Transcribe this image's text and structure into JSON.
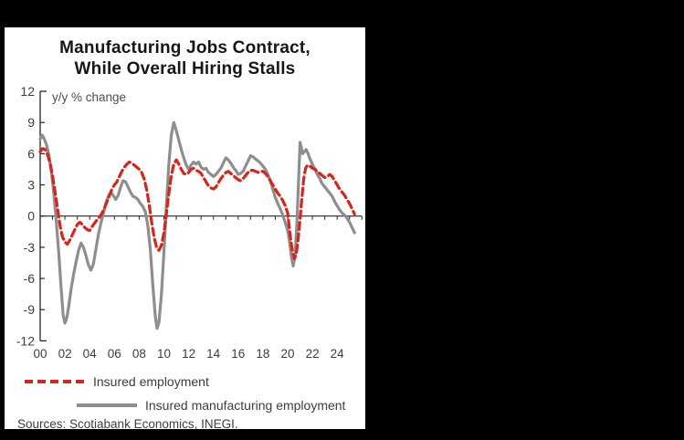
{
  "window": {
    "background": "#000000",
    "card_background": "#ffffff"
  },
  "title": {
    "line1": "Manufacturing Jobs Contract,",
    "line2": "While Overall Hiring Stalls"
  },
  "sources": "Sources: Scotiabank Economics, INEGI.",
  "legend": {
    "items": [
      {
        "label": "Insured employment",
        "style": "dashed",
        "color": "#d8251c"
      },
      {
        "label": "Insured manufacturing employment",
        "style": "solid",
        "color": "#8e8e8e"
      }
    ]
  },
  "chart_data": {
    "type": "line",
    "title": "Manufacturing Jobs Contract, While Overall Hiring Stalls",
    "ylabel": "y/y % change",
    "ylim": [
      -12,
      12
    ],
    "yticks": [
      12,
      9,
      6,
      3,
      0,
      -3,
      -6,
      -9,
      -12
    ],
    "x_start": 2000,
    "x_end": 2026,
    "xtick_years": [
      2000,
      2002,
      2004,
      2006,
      2008,
      2010,
      2012,
      2014,
      2016,
      2018,
      2020,
      2022,
      2024
    ],
    "xtick_labels": [
      "00",
      "02",
      "04",
      "06",
      "08",
      "10",
      "12",
      "14",
      "16",
      "18",
      "20",
      "22",
      "24"
    ],
    "grid": false,
    "legend_position": "bottom-left",
    "axis_color": "#262626",
    "tick_label_color": "#3d3d3d",
    "series": [
      {
        "name": "Insured employment",
        "color": "#d8251c",
        "style": "dashed",
        "points": [
          [
            2000.0,
            6.2
          ],
          [
            2000.2,
            6.5
          ],
          [
            2000.4,
            6.4
          ],
          [
            2000.6,
            5.9
          ],
          [
            2000.8,
            5.1
          ],
          [
            2001.0,
            3.9
          ],
          [
            2001.2,
            2.3
          ],
          [
            2001.4,
            0.7
          ],
          [
            2001.6,
            -0.9
          ],
          [
            2001.8,
            -2.0
          ],
          [
            2002.0,
            -2.5
          ],
          [
            2002.2,
            -2.7
          ],
          [
            2002.4,
            -2.3
          ],
          [
            2002.6,
            -1.8
          ],
          [
            2002.8,
            -1.3
          ],
          [
            2003.0,
            -0.8
          ],
          [
            2003.2,
            -0.6
          ],
          [
            2003.4,
            -0.8
          ],
          [
            2003.6,
            -1.1
          ],
          [
            2003.8,
            -1.3
          ],
          [
            2004.0,
            -1.4
          ],
          [
            2004.2,
            -1.0
          ],
          [
            2004.5,
            -0.5
          ],
          [
            2004.8,
            -0.1
          ],
          [
            2005.0,
            0.3
          ],
          [
            2005.2,
            0.8
          ],
          [
            2005.4,
            1.4
          ],
          [
            2005.6,
            2.0
          ],
          [
            2005.8,
            2.6
          ],
          [
            2006.0,
            3.0
          ],
          [
            2006.2,
            3.3
          ],
          [
            2006.4,
            3.8
          ],
          [
            2006.6,
            4.3
          ],
          [
            2006.8,
            4.7
          ],
          [
            2007.0,
            5.0
          ],
          [
            2007.2,
            5.2
          ],
          [
            2007.4,
            5.1
          ],
          [
            2007.6,
            4.9
          ],
          [
            2007.8,
            4.7
          ],
          [
            2008.0,
            4.5
          ],
          [
            2008.2,
            4.2
          ],
          [
            2008.4,
            3.6
          ],
          [
            2008.6,
            2.6
          ],
          [
            2008.8,
            1.2
          ],
          [
            2009.0,
            -0.5
          ],
          [
            2009.2,
            -2.0
          ],
          [
            2009.4,
            -3.0
          ],
          [
            2009.6,
            -3.3
          ],
          [
            2009.8,
            -2.8
          ],
          [
            2010.0,
            -1.6
          ],
          [
            2010.2,
            0.2
          ],
          [
            2010.4,
            2.2
          ],
          [
            2010.6,
            3.9
          ],
          [
            2010.8,
            5.0
          ],
          [
            2011.0,
            5.4
          ],
          [
            2011.2,
            5.0
          ],
          [
            2011.4,
            4.5
          ],
          [
            2011.6,
            4.1
          ],
          [
            2011.8,
            4.0
          ],
          [
            2012.0,
            4.2
          ],
          [
            2012.2,
            4.5
          ],
          [
            2012.4,
            4.6
          ],
          [
            2012.6,
            4.4
          ],
          [
            2012.8,
            4.3
          ],
          [
            2013.0,
            4.1
          ],
          [
            2013.2,
            3.7
          ],
          [
            2013.4,
            3.3
          ],
          [
            2013.6,
            2.9
          ],
          [
            2013.8,
            2.7
          ],
          [
            2014.0,
            2.6
          ],
          [
            2014.2,
            2.8
          ],
          [
            2014.4,
            3.2
          ],
          [
            2014.6,
            3.6
          ],
          [
            2014.8,
            3.9
          ],
          [
            2015.0,
            4.2
          ],
          [
            2015.2,
            4.3
          ],
          [
            2015.4,
            4.1
          ],
          [
            2015.6,
            3.9
          ],
          [
            2015.8,
            3.7
          ],
          [
            2016.0,
            3.5
          ],
          [
            2016.2,
            3.4
          ],
          [
            2016.4,
            3.6
          ],
          [
            2016.6,
            3.9
          ],
          [
            2016.8,
            4.2
          ],
          [
            2017.0,
            4.4
          ],
          [
            2017.2,
            4.4
          ],
          [
            2017.4,
            4.3
          ],
          [
            2017.6,
            4.2
          ],
          [
            2017.8,
            4.3
          ],
          [
            2018.0,
            4.3
          ],
          [
            2018.2,
            4.1
          ],
          [
            2018.4,
            3.8
          ],
          [
            2018.6,
            3.4
          ],
          [
            2018.8,
            3.0
          ],
          [
            2019.0,
            2.6
          ],
          [
            2019.2,
            2.2
          ],
          [
            2019.4,
            1.9
          ],
          [
            2019.6,
            1.5
          ],
          [
            2019.8,
            1.0
          ],
          [
            2020.0,
            0.3
          ],
          [
            2020.1,
            -0.8
          ],
          [
            2020.25,
            -2.3
          ],
          [
            2020.4,
            -3.5
          ],
          [
            2020.55,
            -4.1
          ],
          [
            2020.7,
            -3.6
          ],
          [
            2020.85,
            -2.2
          ],
          [
            2021.0,
            -0.3
          ],
          [
            2021.15,
            1.8
          ],
          [
            2021.3,
            3.6
          ],
          [
            2021.45,
            4.6
          ],
          [
            2021.6,
            4.9
          ],
          [
            2021.8,
            4.8
          ],
          [
            2022.0,
            4.6
          ],
          [
            2022.2,
            4.5
          ],
          [
            2022.4,
            4.3
          ],
          [
            2022.6,
            4.1
          ],
          [
            2022.8,
            3.9
          ],
          [
            2023.0,
            3.7
          ],
          [
            2023.2,
            3.8
          ],
          [
            2023.4,
            4.0
          ],
          [
            2023.6,
            3.8
          ],
          [
            2023.8,
            3.4
          ],
          [
            2024.0,
            3.0
          ],
          [
            2024.2,
            2.6
          ],
          [
            2024.4,
            2.3
          ],
          [
            2024.6,
            2.0
          ],
          [
            2024.8,
            1.6
          ],
          [
            2025.0,
            1.2
          ],
          [
            2025.2,
            0.7
          ],
          [
            2025.4,
            0.2
          ]
        ]
      },
      {
        "name": "Insured manufacturing employment",
        "color": "#8e8e8e",
        "style": "solid",
        "points": [
          [
            2000.0,
            7.4
          ],
          [
            2000.15,
            7.8
          ],
          [
            2000.3,
            7.5
          ],
          [
            2000.5,
            6.9
          ],
          [
            2000.7,
            5.9
          ],
          [
            2000.9,
            4.3
          ],
          [
            2001.1,
            2.2
          ],
          [
            2001.3,
            -0.5
          ],
          [
            2001.5,
            -3.5
          ],
          [
            2001.7,
            -7.0
          ],
          [
            2001.85,
            -9.5
          ],
          [
            2002.0,
            -10.3
          ],
          [
            2002.15,
            -9.8
          ],
          [
            2002.3,
            -8.7
          ],
          [
            2002.5,
            -7.0
          ],
          [
            2002.7,
            -5.6
          ],
          [
            2002.9,
            -4.4
          ],
          [
            2003.1,
            -3.3
          ],
          [
            2003.3,
            -2.6
          ],
          [
            2003.5,
            -3.0
          ],
          [
            2003.7,
            -3.8
          ],
          [
            2003.9,
            -4.7
          ],
          [
            2004.1,
            -5.2
          ],
          [
            2004.3,
            -4.6
          ],
          [
            2004.5,
            -3.2
          ],
          [
            2004.7,
            -1.8
          ],
          [
            2004.9,
            -0.7
          ],
          [
            2005.1,
            0.2
          ],
          [
            2005.3,
            1.2
          ],
          [
            2005.5,
            1.9
          ],
          [
            2005.7,
            2.3
          ],
          [
            2005.9,
            2.0
          ],
          [
            2006.1,
            1.6
          ],
          [
            2006.3,
            2.0
          ],
          [
            2006.5,
            2.8
          ],
          [
            2006.7,
            3.4
          ],
          [
            2006.9,
            3.3
          ],
          [
            2007.1,
            2.8
          ],
          [
            2007.3,
            2.3
          ],
          [
            2007.5,
            1.9
          ],
          [
            2007.7,
            1.8
          ],
          [
            2007.9,
            1.6
          ],
          [
            2008.1,
            1.2
          ],
          [
            2008.3,
            0.9
          ],
          [
            2008.5,
            0.4
          ],
          [
            2008.7,
            -0.9
          ],
          [
            2008.9,
            -3.2
          ],
          [
            2009.1,
            -6.6
          ],
          [
            2009.3,
            -9.6
          ],
          [
            2009.45,
            -10.8
          ],
          [
            2009.6,
            -10.2
          ],
          [
            2009.8,
            -7.5
          ],
          [
            2010.0,
            -3.5
          ],
          [
            2010.2,
            1.0
          ],
          [
            2010.4,
            5.0
          ],
          [
            2010.6,
            7.8
          ],
          [
            2010.8,
            9.0
          ],
          [
            2011.0,
            8.2
          ],
          [
            2011.2,
            7.3
          ],
          [
            2011.4,
            6.4
          ],
          [
            2011.6,
            5.6
          ],
          [
            2011.8,
            4.9
          ],
          [
            2012.0,
            4.5
          ],
          [
            2012.2,
            4.9
          ],
          [
            2012.4,
            5.2
          ],
          [
            2012.6,
            5.0
          ],
          [
            2012.8,
            5.2
          ],
          [
            2013.0,
            4.7
          ],
          [
            2013.2,
            4.5
          ],
          [
            2013.4,
            4.6
          ],
          [
            2013.6,
            4.2
          ],
          [
            2013.8,
            4.0
          ],
          [
            2014.0,
            3.8
          ],
          [
            2014.2,
            4.0
          ],
          [
            2014.4,
            4.3
          ],
          [
            2014.6,
            4.6
          ],
          [
            2014.8,
            5.1
          ],
          [
            2015.0,
            5.6
          ],
          [
            2015.2,
            5.4
          ],
          [
            2015.4,
            5.1
          ],
          [
            2015.6,
            4.7
          ],
          [
            2015.8,
            4.4
          ],
          [
            2016.0,
            4.0
          ],
          [
            2016.2,
            4.1
          ],
          [
            2016.4,
            4.3
          ],
          [
            2016.6,
            4.8
          ],
          [
            2016.8,
            5.3
          ],
          [
            2017.0,
            5.8
          ],
          [
            2017.2,
            5.7
          ],
          [
            2017.4,
            5.5
          ],
          [
            2017.6,
            5.3
          ],
          [
            2017.8,
            5.1
          ],
          [
            2018.0,
            4.8
          ],
          [
            2018.2,
            4.5
          ],
          [
            2018.4,
            4.0
          ],
          [
            2018.6,
            3.4
          ],
          [
            2018.8,
            2.6
          ],
          [
            2019.0,
            1.8
          ],
          [
            2019.2,
            1.2
          ],
          [
            2019.4,
            0.7
          ],
          [
            2019.6,
            0.1
          ],
          [
            2019.8,
            -0.6
          ],
          [
            2020.0,
            -1.4
          ],
          [
            2020.15,
            -2.4
          ],
          [
            2020.3,
            -3.9
          ],
          [
            2020.45,
            -4.8
          ],
          [
            2020.6,
            -3.8
          ],
          [
            2020.75,
            -0.5
          ],
          [
            2020.9,
            4.0
          ],
          [
            2021.0,
            7.1
          ],
          [
            2021.1,
            6.6
          ],
          [
            2021.2,
            6.0
          ],
          [
            2021.35,
            6.2
          ],
          [
            2021.5,
            6.4
          ],
          [
            2021.65,
            6.0
          ],
          [
            2021.8,
            5.5
          ],
          [
            2022.0,
            5.0
          ],
          [
            2022.2,
            4.5
          ],
          [
            2022.4,
            4.0
          ],
          [
            2022.6,
            3.6
          ],
          [
            2022.8,
            3.1
          ],
          [
            2023.0,
            2.8
          ],
          [
            2023.2,
            2.5
          ],
          [
            2023.4,
            2.2
          ],
          [
            2023.6,
            1.9
          ],
          [
            2023.8,
            1.4
          ],
          [
            2024.0,
            1.0
          ],
          [
            2024.2,
            0.6
          ],
          [
            2024.4,
            0.3
          ],
          [
            2024.6,
            0.1
          ],
          [
            2024.8,
            -0.2
          ],
          [
            2025.0,
            -0.6
          ],
          [
            2025.2,
            -1.1
          ],
          [
            2025.4,
            -1.6
          ]
        ]
      }
    ]
  }
}
